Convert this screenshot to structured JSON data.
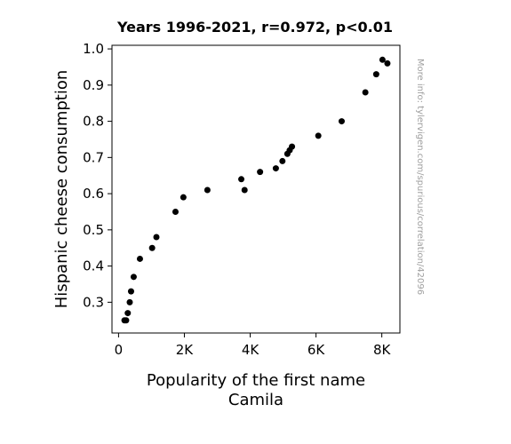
{
  "chart_data": {
    "type": "scatter",
    "title": "Years 1996-2021, r=0.972, p<0.01",
    "xlabel_line1": "Popularity of the first name",
    "xlabel_line2": "Camila",
    "ylabel": "Hispanic cheese consumption",
    "watermark": "More info: tylervigen.com/spurious/correlation/42096",
    "xlim": [
      -200,
      8550
    ],
    "ylim": [
      0.215,
      1.01
    ],
    "x_ticks": [
      {
        "value": 0,
        "label": "0"
      },
      {
        "value": 2000,
        "label": "2K"
      },
      {
        "value": 4000,
        "label": "4K"
      },
      {
        "value": 6000,
        "label": "6K"
      },
      {
        "value": 8000,
        "label": "8K"
      }
    ],
    "y_ticks": [
      {
        "value": 0.3,
        "label": "0.3"
      },
      {
        "value": 0.4,
        "label": "0.4"
      },
      {
        "value": 0.5,
        "label": "0.5"
      },
      {
        "value": 0.6,
        "label": "0.6"
      },
      {
        "value": 0.7,
        "label": "0.7"
      },
      {
        "value": 0.8,
        "label": "0.8"
      },
      {
        "value": 0.9,
        "label": "0.9"
      },
      {
        "value": 1.0,
        "label": "1.0"
      }
    ],
    "marker_color": "#000000",
    "points": [
      {
        "x": 180,
        "y": 0.25
      },
      {
        "x": 230,
        "y": 0.25
      },
      {
        "x": 280,
        "y": 0.27
      },
      {
        "x": 340,
        "y": 0.3
      },
      {
        "x": 380,
        "y": 0.33
      },
      {
        "x": 460,
        "y": 0.37
      },
      {
        "x": 650,
        "y": 0.42
      },
      {
        "x": 1020,
        "y": 0.45
      },
      {
        "x": 1150,
        "y": 0.48
      },
      {
        "x": 1730,
        "y": 0.55
      },
      {
        "x": 1970,
        "y": 0.59
      },
      {
        "x": 2700,
        "y": 0.61
      },
      {
        "x": 3730,
        "y": 0.64
      },
      {
        "x": 3830,
        "y": 0.61
      },
      {
        "x": 4300,
        "y": 0.66
      },
      {
        "x": 4780,
        "y": 0.67
      },
      {
        "x": 4980,
        "y": 0.69
      },
      {
        "x": 5130,
        "y": 0.71
      },
      {
        "x": 5200,
        "y": 0.72
      },
      {
        "x": 5270,
        "y": 0.73
      },
      {
        "x": 6070,
        "y": 0.76
      },
      {
        "x": 6780,
        "y": 0.8
      },
      {
        "x": 7500,
        "y": 0.88
      },
      {
        "x": 7830,
        "y": 0.93
      },
      {
        "x": 8020,
        "y": 0.97
      },
      {
        "x": 8170,
        "y": 0.96
      }
    ]
  }
}
